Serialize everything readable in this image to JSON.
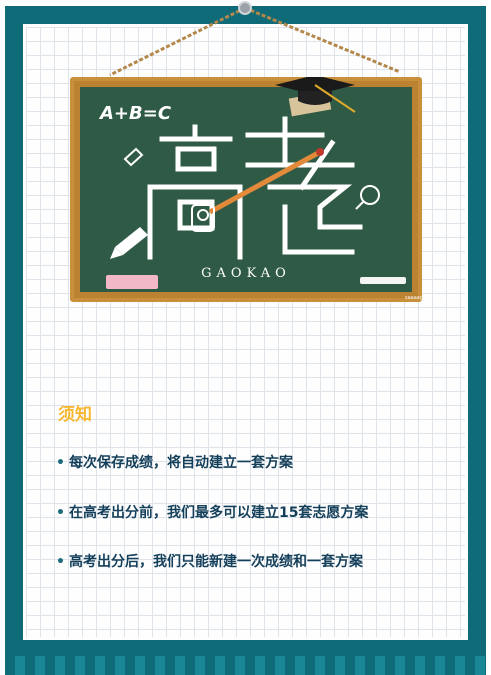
{
  "board": {
    "formula": "A+B=C",
    "big_title": "高考",
    "subtitle": "GAOKAO",
    "signature": "saaaaga"
  },
  "notice": {
    "title": "须知",
    "items": [
      "每次保存成绩，将自动建立一套方案",
      "在高考出分前，我们最多可以建立15套志愿方案",
      "高考出分后，我们只能新建一次成绩和一套方案"
    ]
  },
  "colors": {
    "frame": "#0f6b78",
    "title": "#f7b731",
    "text": "#143f5a",
    "board": "#2f5a46",
    "board_frame": "#c8903a"
  }
}
